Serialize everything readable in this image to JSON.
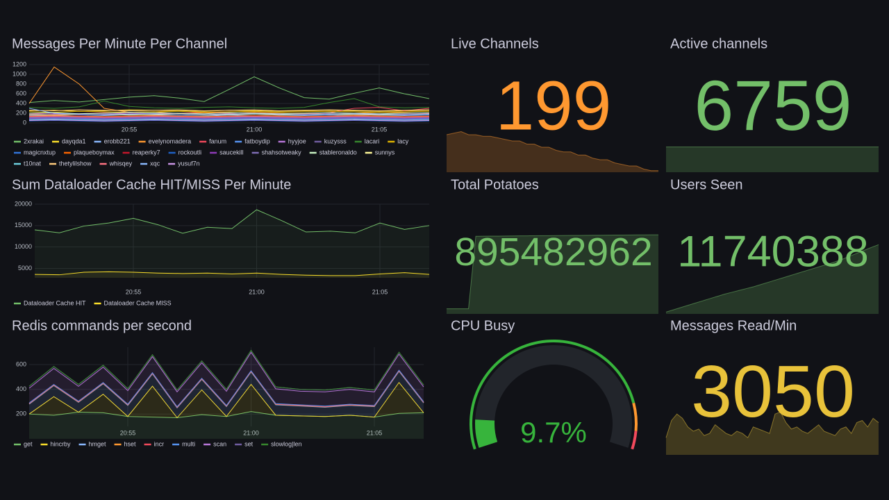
{
  "chart_data": [
    {
      "type": "line",
      "title": "Messages Per Minute Per Channel",
      "categories": [
        null,
        null,
        null,
        null,
        "20:55",
        null,
        null,
        null,
        null,
        "21:00",
        null,
        null,
        null,
        null,
        "21:05",
        null,
        null
      ],
      "ylim": [
        0,
        1200
      ],
      "yticks": [
        0,
        200,
        400,
        600,
        800,
        1000,
        1200
      ],
      "grid": true,
      "fill": false,
      "stacked": false,
      "series": [
        {
          "name": "2xrakai",
          "color": "#73bf69",
          "values": [
            420,
            460,
            430,
            480,
            530,
            560,
            510,
            440,
            690,
            950,
            720,
            520,
            490,
            610,
            720,
            600,
            500
          ]
        },
        {
          "name": "dayqda1",
          "color": "#fade2a",
          "values": [
            250,
            260,
            240,
            250,
            270,
            260,
            250,
            240,
            260,
            250,
            240,
            250,
            260,
            250,
            240,
            250,
            260
          ]
        },
        {
          "name": "erobb221",
          "color": "#8ab8ff",
          "values": [
            150,
            160,
            140,
            150,
            170,
            160,
            150,
            140,
            160,
            150,
            140,
            150,
            160,
            150,
            140,
            150,
            160
          ]
        },
        {
          "name": "evelynomadera",
          "color": "#ff9830",
          "values": [
            400,
            1150,
            800,
            300,
            220,
            230,
            190,
            210,
            200,
            220,
            200,
            190,
            210,
            200,
            220,
            210,
            200
          ]
        },
        {
          "name": "fanum",
          "color": "#f2495c",
          "values": [
            200,
            180,
            190,
            210,
            200,
            190,
            200,
            220,
            210,
            200,
            190,
            200,
            210,
            300,
            320,
            250,
            300
          ]
        },
        {
          "name": "fatboydip",
          "color": "#5794f2",
          "values": [
            100,
            110,
            100,
            90,
            100,
            110,
            100,
            90,
            100,
            110,
            100,
            90,
            100,
            110,
            100,
            90,
            100
          ]
        },
        {
          "name": "hyyjoe",
          "color": "#b877d9",
          "values": [
            180,
            190,
            170,
            180,
            200,
            190,
            180,
            170,
            190,
            180,
            170,
            180,
            190,
            180,
            170,
            180,
            190
          ]
        },
        {
          "name": "kuzysss",
          "color": "#705da0",
          "values": [
            60,
            70,
            60,
            50,
            60,
            70,
            60,
            50,
            60,
            70,
            60,
            50,
            60,
            70,
            60,
            50,
            60
          ]
        },
        {
          "name": "lacari",
          "color": "#37872d",
          "values": [
            320,
            300,
            330,
            450,
            340,
            310,
            300,
            320,
            330,
            310,
            300,
            320,
            420,
            500,
            330,
            310,
            320
          ]
        },
        {
          "name": "lacy",
          "color": "#e0b400",
          "values": [
            230,
            220,
            240,
            230,
            220,
            230,
            240,
            220,
            230,
            240,
            220,
            230,
            240,
            230,
            220,
            230,
            240
          ]
        },
        {
          "name": "magicnxtup",
          "color": "#3274d9",
          "values": [
            80,
            90,
            80,
            70,
            80,
            90,
            80,
            70,
            80,
            90,
            80,
            70,
            80,
            90,
            80,
            70,
            80
          ]
        },
        {
          "name": "plaqueboymax",
          "color": "#fa6400",
          "values": [
            140,
            150,
            140,
            130,
            140,
            150,
            140,
            130,
            140,
            150,
            140,
            130,
            140,
            150,
            140,
            130,
            140
          ]
        },
        {
          "name": "reaperky7",
          "color": "#c4162a",
          "values": [
            120,
            130,
            120,
            110,
            120,
            130,
            120,
            110,
            120,
            130,
            120,
            110,
            120,
            130,
            120,
            110,
            120
          ]
        },
        {
          "name": "rockoutli",
          "color": "#1f60c4",
          "values": [
            40,
            50,
            40,
            30,
            40,
            50,
            40,
            30,
            40,
            50,
            40,
            30,
            40,
            50,
            40,
            30,
            40
          ]
        },
        {
          "name": "saucekill",
          "color": "#8f3bb8",
          "values": [
            90,
            100,
            90,
            80,
            90,
            100,
            90,
            80,
            90,
            100,
            90,
            80,
            90,
            100,
            90,
            80,
            90
          ]
        },
        {
          "name": "shahsotweaky",
          "color": "#806eb7",
          "values": [
            110,
            120,
            110,
            100,
            110,
            120,
            110,
            100,
            110,
            120,
            110,
            100,
            110,
            120,
            110,
            100,
            110
          ]
        },
        {
          "name": "stableronaldo",
          "color": "#c8f2c2",
          "values": [
            200,
            210,
            190,
            200,
            220,
            210,
            200,
            190,
            210,
            200,
            190,
            200,
            210,
            200,
            190,
            200,
            210
          ]
        },
        {
          "name": "sunnys",
          "color": "#fff899",
          "values": [
            170,
            160,
            180,
            170,
            160,
            170,
            180,
            160,
            170,
            180,
            160,
            170,
            180,
            170,
            160,
            170,
            180
          ]
        },
        {
          "name": "t10nat",
          "color": "#6ed0e0",
          "values": [
            70,
            80,
            70,
            60,
            70,
            80,
            70,
            60,
            70,
            80,
            70,
            60,
            70,
            80,
            70,
            60,
            70
          ]
        },
        {
          "name": "thetylilshow",
          "color": "#ffcb7d",
          "values": [
            260,
            250,
            270,
            260,
            250,
            260,
            270,
            250,
            260,
            270,
            250,
            260,
            270,
            260,
            250,
            260,
            270
          ]
        },
        {
          "name": "whisqey",
          "color": "#ff7383",
          "values": [
            130,
            140,
            130,
            120,
            130,
            140,
            130,
            120,
            130,
            140,
            130,
            120,
            130,
            140,
            130,
            120,
            130
          ]
        },
        {
          "name": "xqc",
          "color": "#8ab8ff",
          "values": [
            300,
            200,
            180,
            170,
            180,
            190,
            180,
            170,
            180,
            190,
            180,
            170,
            180,
            190,
            180,
            170,
            180
          ]
        },
        {
          "name": "yusuf7n",
          "color": "#ca95e5",
          "values": [
            50,
            60,
            50,
            40,
            50,
            60,
            50,
            40,
            50,
            60,
            50,
            40,
            50,
            60,
            50,
            40,
            50
          ]
        }
      ]
    },
    {
      "type": "line",
      "title": "Sum Dataloader Cache HIT/MISS Per Minute",
      "categories": [
        null,
        null,
        null,
        null,
        "20:55",
        null,
        null,
        null,
        null,
        "21:00",
        null,
        null,
        null,
        null,
        "21:05",
        null,
        null
      ],
      "ylim": [
        2800,
        20000
      ],
      "yticks": [
        5000,
        10000,
        15000,
        20000
      ],
      "grid": true,
      "fill": true,
      "stacked": false,
      "series": [
        {
          "name": "Dataloader Cache HIT",
          "color": "#73bf69",
          "values": [
            14000,
            13300,
            14900,
            15600,
            16700,
            15200,
            13200,
            14600,
            14300,
            18700,
            16200,
            13500,
            13700,
            13300,
            15600,
            14100,
            15000
          ]
        },
        {
          "name": "Dataloader Cache MISS",
          "color": "#fade2a",
          "values": [
            3600,
            3500,
            4100,
            4200,
            4100,
            3900,
            3800,
            3900,
            3700,
            3900,
            3600,
            3400,
            3300,
            3300,
            3700,
            4000,
            3600
          ]
        }
      ]
    },
    {
      "type": "line",
      "title": "Redis commands per second",
      "categories": [
        null,
        null,
        null,
        null,
        "20:55",
        null,
        null,
        null,
        null,
        "21:00",
        null,
        null,
        null,
        null,
        "21:05",
        null,
        null
      ],
      "ylim": [
        100,
        740
      ],
      "yticks": [
        200,
        400,
        600
      ],
      "grid": true,
      "fill": true,
      "stacked": true,
      "series": [
        {
          "name": "get",
          "color": "#73bf69",
          "values": [
            200,
            190,
            215,
            210,
            180,
            175,
            170,
            195,
            180,
            220,
            190,
            185,
            180,
            190,
            175,
            205,
            210
          ]
        },
        {
          "name": "hincrby",
          "color": "#fade2a",
          "values": [
            0,
            150,
            0,
            150,
            0,
            250,
            0,
            200,
            0,
            220,
            0,
            0,
            0,
            0,
            0,
            250,
            0
          ]
        },
        {
          "name": "hmget",
          "color": "#8ab8ff",
          "values": [
            80,
            90,
            80,
            85,
            90,
            100,
            80,
            85,
            80,
            100,
            85,
            80,
            75,
            80,
            85,
            90,
            80
          ]
        },
        {
          "name": "hset",
          "color": "#ff9830",
          "values": [
            3,
            3,
            3,
            3,
            3,
            3,
            3,
            3,
            3,
            3,
            3,
            3,
            3,
            3,
            3,
            3,
            3
          ]
        },
        {
          "name": "incr",
          "color": "#f2495c",
          "values": [
            2,
            2,
            2,
            2,
            2,
            2,
            2,
            2,
            2,
            2,
            2,
            2,
            2,
            2,
            2,
            2,
            2
          ]
        },
        {
          "name": "multi",
          "color": "#5794f2",
          "values": [
            4,
            4,
            4,
            4,
            4,
            4,
            4,
            4,
            4,
            4,
            4,
            4,
            4,
            4,
            4,
            4,
            4
          ]
        },
        {
          "name": "scan",
          "color": "#b877d9",
          "values": [
            120,
            130,
            120,
            125,
            110,
            130,
            120,
            125,
            115,
            150,
            120,
            110,
            115,
            120,
            110,
            130,
            120
          ]
        },
        {
          "name": "set",
          "color": "#705da0",
          "values": [
            15,
            15,
            15,
            15,
            15,
            15,
            15,
            15,
            15,
            15,
            15,
            15,
            15,
            15,
            15,
            15,
            15
          ]
        },
        {
          "name": "slowlog|len",
          "color": "#37872d",
          "values": [
            1,
            1,
            1,
            1,
            1,
            1,
            1,
            1,
            1,
            1,
            1,
            1,
            1,
            1,
            1,
            1,
            1
          ]
        }
      ]
    },
    {
      "type": "stat",
      "title": "Live Channels",
      "value": 199,
      "color": "#ff9830",
      "ylim": [
        198,
        226
      ],
      "sparkline": [
        222,
        223,
        224,
        222,
        222,
        221,
        221,
        220,
        219,
        218,
        218,
        216,
        216,
        214,
        214,
        212,
        211,
        211,
        209,
        209,
        207,
        206,
        206,
        204,
        203,
        202,
        202,
        200,
        199,
        199
      ]
    },
    {
      "type": "stat",
      "title": "Active channels",
      "value": 6759,
      "color": "#73bf69",
      "ylim": [
        6000,
        7000
      ],
      "sparkline": [
        6759,
        6759,
        6759,
        6759,
        6759,
        6759,
        6759,
        6759,
        6759,
        6759,
        6759,
        6759
      ]
    },
    {
      "type": "stat",
      "title": "Total Potatoes",
      "value": 895482962,
      "color": "#73bf69",
      "ylim": [
        880000000,
        895500000
      ],
      "sparkline": [
        881000000,
        881000000,
        881000000,
        881000000,
        895200000,
        895212000,
        895224000,
        895236000,
        895248000,
        895260000,
        895272000,
        895284000,
        895296000,
        895308000,
        895320000,
        895332000,
        895344000,
        895356000,
        895368000,
        895380000,
        895392000,
        895404000,
        895416000,
        895428000,
        895440000,
        895450000,
        895460000,
        895468000,
        895476000,
        895482962
      ]
    },
    {
      "type": "stat",
      "title": "Users Seen",
      "value": 11740388,
      "color": "#73bf69",
      "ylim": [
        11555000,
        11741000
      ],
      "sparkline": [
        11560000,
        11566000,
        11572000,
        11578000,
        11584000,
        11590000,
        11596000,
        11602000,
        11608000,
        11613000,
        11618000,
        11623000,
        11628000,
        11634000,
        11640000,
        11646000,
        11652000,
        11658000,
        11664000,
        11670000,
        11676000,
        11682000,
        11688000,
        11694000,
        11701000,
        11709000,
        11717000,
        11725000,
        11733000,
        11740388
      ]
    },
    {
      "type": "gauge",
      "title": "CPU Busy",
      "value": 9.7,
      "value_label": "9.7%",
      "color": "#37b43c",
      "range": [
        0,
        100
      ],
      "thresholds": [
        {
          "value": 0,
          "color": "#37b43c"
        },
        {
          "value": 85,
          "color": "#ff9830"
        },
        {
          "value": 94,
          "color": "#f2495c"
        }
      ]
    },
    {
      "type": "stat",
      "title": "Messages Read/Min",
      "value": 3050,
      "color": "#e8c23a",
      "ylim": [
        1000,
        3100
      ],
      "sparkline": [
        1800,
        2600,
        2900,
        2700,
        2300,
        2100,
        2200,
        1900,
        2000,
        2400,
        2200,
        2000,
        1900,
        2100,
        2000,
        1800,
        2300,
        2200,
        2100,
        2000,
        2900,
        3000,
        2500,
        2200,
        2300,
        2100,
        2000,
        2200,
        2400,
        2100,
        2000,
        1900,
        2200,
        2300,
        2000,
        2500,
        2600,
        2300,
        2700,
        2500
      ]
    }
  ]
}
